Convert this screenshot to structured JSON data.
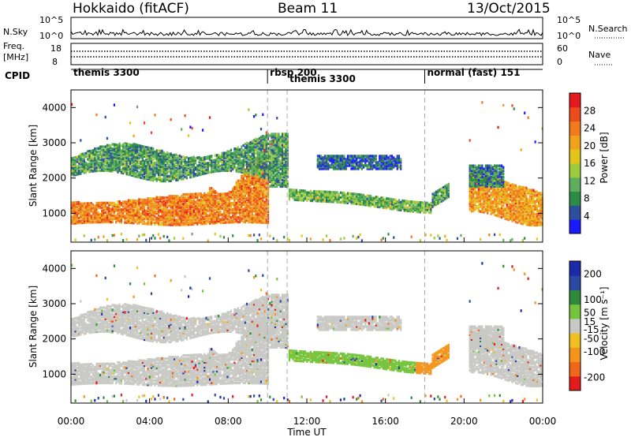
{
  "header": {
    "station": "Hokkaido (fitACF)",
    "beam": "Beam 11",
    "date": "13/Oct/2015"
  },
  "noise_panel": {
    "left_label": "N.Sky",
    "right_label": "N.Search",
    "left_ticks": [
      "10^5",
      "10^0"
    ],
    "right_ticks": [
      "10^5",
      "10^0"
    ]
  },
  "freq_panel": {
    "left_label_line1": "Freq.",
    "left_label_line2": "[MHz]",
    "right_label": "Nave",
    "left_ticks": [
      "18",
      "8"
    ],
    "right_ticks": [
      "60",
      "0"
    ],
    "freq_mhz": 11.0,
    "nave": 30
  },
  "cpid_panel": {
    "label": "CPID",
    "segments": [
      {
        "name": "themis 3300",
        "start_hour": 0.0
      },
      {
        "name": "rbsp 200",
        "start_hour": 10.0
      },
      {
        "name": "themis 3300",
        "start_hour": 11.0
      },
      {
        "name": "normal (fast) 151",
        "start_hour": 18.0
      }
    ]
  },
  "colors": {
    "power_scale": [
      "#1a1aff",
      "#2e4f9e",
      "#2b8c46",
      "#5fae5f",
      "#9ccc3c",
      "#e3c41a",
      "#f2a21a",
      "#f07a1c",
      "#ec4b1c",
      "#e41a1c"
    ],
    "velocity_scale": [
      "#1a2aa8",
      "#2a49a5",
      "#2e8b3a",
      "#74c43c",
      "#c8c8c4",
      "#f0c020",
      "#f5941a",
      "#f0661a",
      "#e41a1c"
    ]
  },
  "chart_data": [
    {
      "type": "heatmap",
      "title": "Power",
      "xlabel": "Time UT",
      "ylabel": "Slant Range [km]",
      "xlim_hours": [
        0,
        24
      ],
      "ylim": [
        180,
        4500
      ],
      "x_tick_labels": [
        "00:00",
        "04:00",
        "08:00",
        "12:00",
        "16:00",
        "20:00",
        "00:00"
      ],
      "y_ticks": [
        1000,
        2000,
        3000,
        4000
      ],
      "colorbar": {
        "label": "Power [dB]",
        "ticks": [
          4,
          8,
          12,
          16,
          20,
          24,
          28
        ],
        "range": [
          0,
          32
        ]
      },
      "features": [
        {
          "band": "main E/F echo",
          "hours": [
            0,
            10
          ],
          "range_km": [
            700,
            1700
          ],
          "power_db": 28
        },
        {
          "band": "upper echo",
          "hours": [
            0,
            11
          ],
          "range_km": [
            2000,
            3300
          ],
          "power_db": 14
        },
        {
          "band": "post-noon band",
          "hours": [
            11,
            19
          ],
          "range_km": [
            1200,
            1900
          ],
          "power_db": 16
        },
        {
          "band": "evening echo",
          "hours": [
            20,
            24
          ],
          "range_km": [
            900,
            2400
          ],
          "power_db": 26
        }
      ]
    },
    {
      "type": "heatmap",
      "title": "Velocity",
      "xlabel": "Time UT",
      "ylabel": "Slant Range [km]",
      "xlim_hours": [
        0,
        24
      ],
      "ylim": [
        180,
        4500
      ],
      "x_tick_labels": [
        "00:00",
        "04:00",
        "08:00",
        "12:00",
        "16:00",
        "20:00",
        "00:00"
      ],
      "y_ticks": [
        1000,
        2000,
        3000,
        4000
      ],
      "colorbar": {
        "label": "Velocity [m s⁻¹]",
        "ticks": [
          200,
          100,
          50,
          15,
          -15,
          -50,
          -100,
          -200
        ],
        "range": [
          -250,
          250
        ]
      },
      "features": [
        {
          "band": "ground scatter",
          "hours": [
            0,
            11
          ],
          "range_km": [
            700,
            3300
          ],
          "velocity_ms": 0
        },
        {
          "band": "post-noon band",
          "hours": [
            11,
            17.5
          ],
          "range_km": [
            1100,
            1800
          ],
          "velocity_ms": 40
        },
        {
          "band": "receding tail",
          "hours": [
            17.5,
            19.5
          ],
          "range_km": [
            1200,
            1900
          ],
          "velocity_ms": -70
        },
        {
          "band": "evening scatter",
          "hours": [
            20,
            24
          ],
          "range_km": [
            800,
            2500
          ],
          "velocity_ms": 0
        }
      ]
    }
  ],
  "time_axis_label": "Time UT"
}
